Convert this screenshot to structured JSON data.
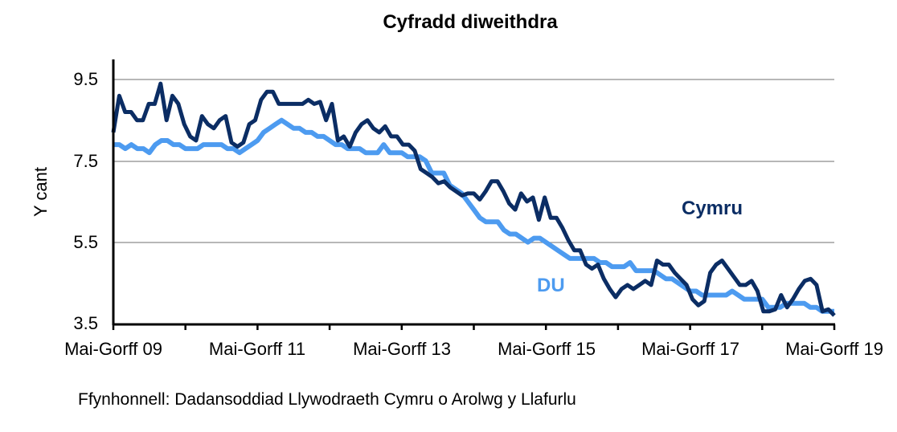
{
  "chart_data": {
    "type": "line",
    "title": "Cyfradd diweithdra",
    "xlabel": "",
    "ylabel": "Y cant",
    "ylim": [
      3.5,
      9.5
    ],
    "yticks": [
      "9.5",
      "7.5",
      "5.5",
      "3.5"
    ],
    "xtick_labels": [
      "Mai-Gorff 09",
      "Mai-Gorff 11",
      "Mai-Gorff 13",
      "Mai-Gorff 15",
      "Mai-Gorff 17",
      "Mai-Gorff 19"
    ],
    "x_range": "Mai-Gorff 09 to Mai-Gorff 19 (monthly rolling quarters)",
    "grid": true,
    "legend_position": "inline labels",
    "series": [
      {
        "name": "Cymru",
        "color": "#0b2d64",
        "values": [
          8.2,
          9.1,
          8.7,
          8.7,
          8.5,
          8.5,
          8.9,
          8.9,
          9.4,
          8.5,
          9.1,
          8.9,
          8.4,
          8.1,
          8.0,
          8.6,
          8.4,
          8.3,
          8.5,
          8.6,
          7.95,
          7.85,
          7.95,
          8.4,
          8.5,
          9.0,
          9.2,
          9.2,
          8.9,
          8.9,
          8.9,
          8.9,
          8.9,
          9.0,
          8.9,
          8.95,
          8.5,
          8.9,
          8.0,
          8.1,
          7.85,
          8.2,
          8.4,
          8.5,
          8.3,
          8.2,
          8.35,
          8.1,
          8.1,
          7.9,
          7.9,
          7.75,
          7.3,
          7.2,
          7.1,
          6.95,
          7.0,
          6.85,
          6.75,
          6.65,
          6.7,
          6.7,
          6.55,
          6.75,
          7.0,
          7.0,
          6.75,
          6.45,
          6.3,
          6.7,
          6.5,
          6.6,
          6.05,
          6.6,
          6.1,
          6.1,
          5.85,
          5.55,
          5.3,
          5.3,
          4.95,
          4.85,
          4.95,
          4.6,
          4.35,
          4.15,
          4.35,
          4.45,
          4.35,
          4.45,
          4.55,
          4.45,
          5.05,
          4.95,
          4.95,
          4.75,
          4.6,
          4.45,
          4.1,
          3.95,
          4.05,
          4.75,
          4.95,
          5.05,
          4.85,
          4.65,
          4.45,
          4.45,
          4.55,
          4.3,
          3.8,
          3.8,
          3.85,
          4.2,
          3.9,
          4.1,
          4.35,
          4.55,
          4.6,
          4.45,
          3.8,
          3.85,
          3.7
        ]
      },
      {
        "name": "DU",
        "color": "#4d9bf0",
        "values": [
          7.9,
          7.9,
          7.8,
          7.9,
          7.8,
          7.8,
          7.7,
          7.9,
          8.0,
          8.0,
          7.9,
          7.9,
          7.8,
          7.8,
          7.8,
          7.9,
          7.9,
          7.9,
          7.9,
          7.8,
          7.8,
          7.7,
          7.8,
          7.9,
          8.0,
          8.2,
          8.3,
          8.4,
          8.5,
          8.4,
          8.3,
          8.3,
          8.2,
          8.2,
          8.1,
          8.1,
          8.0,
          7.9,
          7.9,
          7.8,
          7.8,
          7.8,
          7.7,
          7.7,
          7.7,
          7.9,
          7.7,
          7.7,
          7.7,
          7.6,
          7.6,
          7.6,
          7.5,
          7.2,
          7.2,
          7.2,
          6.9,
          6.8,
          6.7,
          6.5,
          6.3,
          6.1,
          6.0,
          6.0,
          6.0,
          5.8,
          5.7,
          5.7,
          5.6,
          5.5,
          5.6,
          5.6,
          5.5,
          5.4,
          5.3,
          5.2,
          5.1,
          5.1,
          5.1,
          5.1,
          5.1,
          5.0,
          5.0,
          4.9,
          4.9,
          4.9,
          5.0,
          4.8,
          4.8,
          4.8,
          4.8,
          4.7,
          4.6,
          4.6,
          4.5,
          4.4,
          4.3,
          4.3,
          4.2,
          4.2,
          4.2,
          4.2,
          4.2,
          4.3,
          4.2,
          4.1,
          4.1,
          4.1,
          4.1,
          3.9,
          3.9,
          3.9,
          4.0,
          4.0,
          4.0,
          4.0,
          3.9,
          3.9,
          3.8,
          3.8,
          3.8
        ]
      }
    ],
    "annotations": [
      {
        "text": "Cymru",
        "color": "#0b2d64"
      },
      {
        "text": "DU",
        "color": "#4d9bf0"
      }
    ],
    "source_note": "Ffynhonnell: Dadansoddiad Llywodraeth Cymru o Arolwg y Llafurlu"
  },
  "labels": {
    "title": "Cyfradd diweithdra",
    "ylabel": "Y cant",
    "cymru": "Cymru",
    "du": "DU",
    "source": "Ffynhonnell: Dadansoddiad Llywodraeth Cymru o Arolwg y Llafurlu",
    "yticks": [
      "9.5",
      "7.5",
      "5.5",
      "3.5"
    ],
    "xticks": [
      "Mai-Gorff 09",
      "Mai-Gorff 11",
      "Mai-Gorff 13",
      "Mai-Gorff 15",
      "Mai-Gorff 17",
      "Mai-Gorff 19"
    ]
  }
}
